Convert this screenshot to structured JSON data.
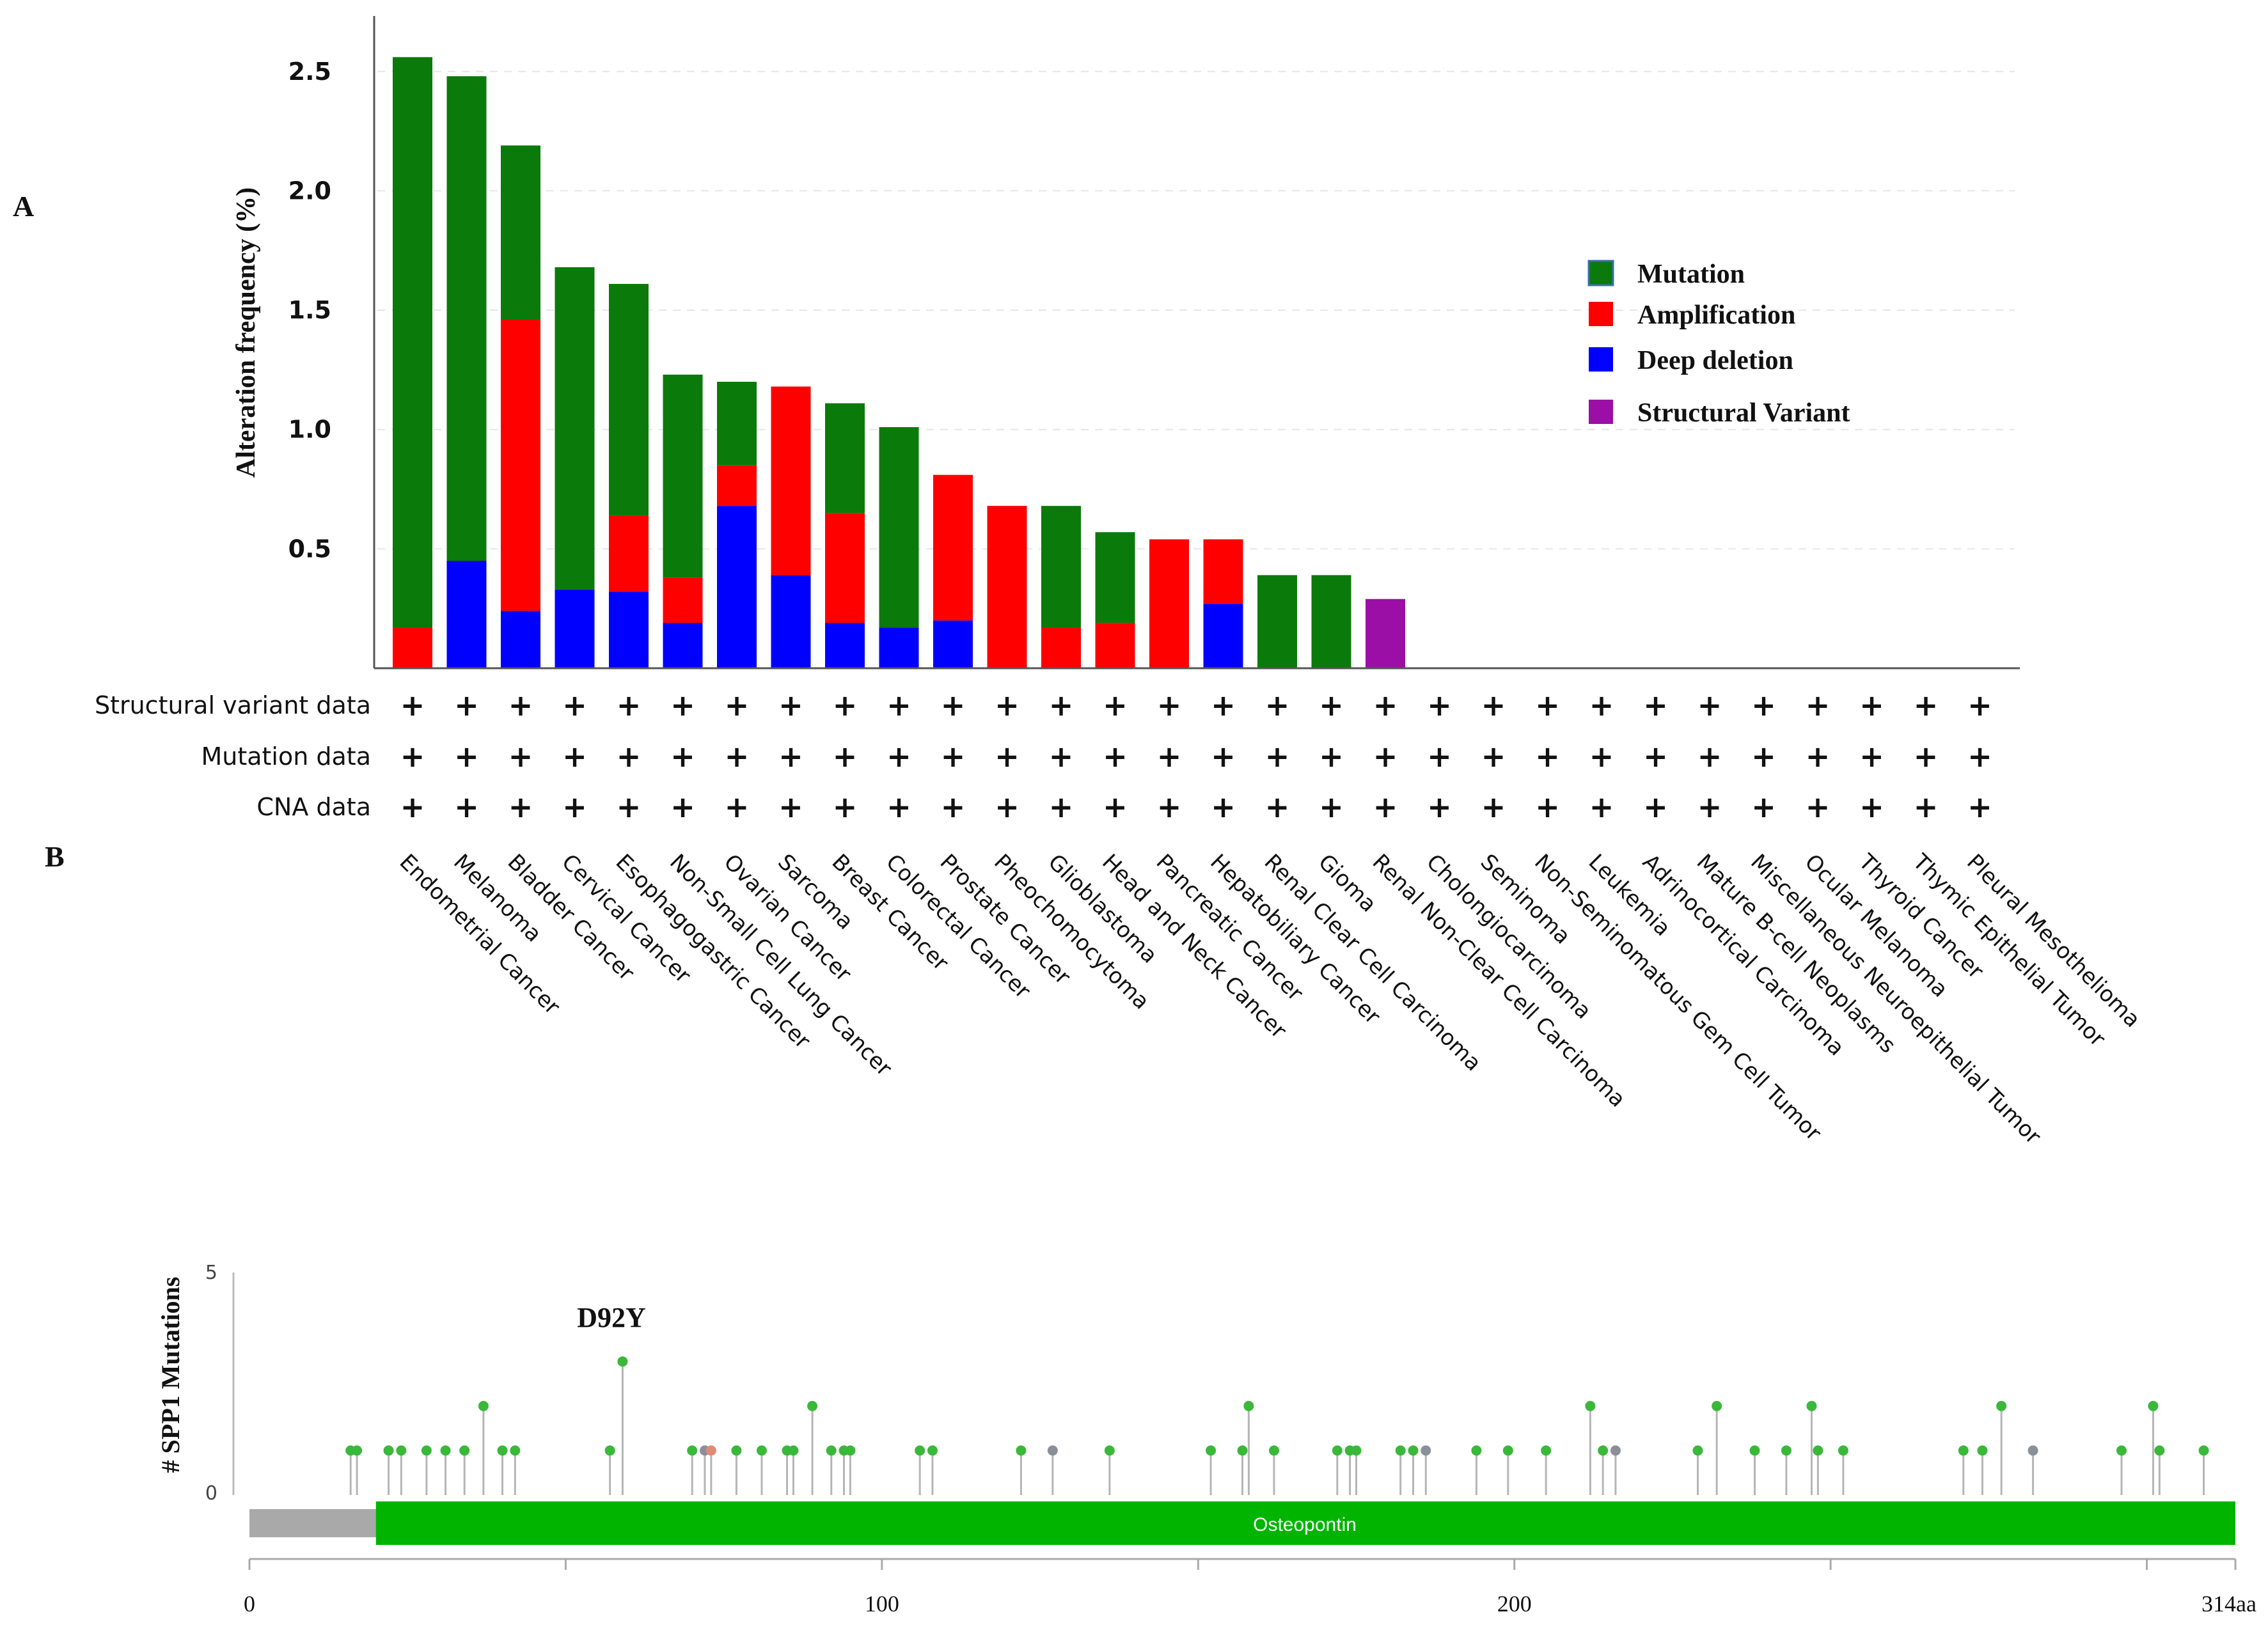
{
  "panel_labels": {
    "a": "A",
    "b": "B"
  },
  "colors": {
    "mutation": "#0a7a0a",
    "amplification": "#ff0000",
    "deep_deletion": "#0000ff",
    "structural_variant": "#9b0fa6",
    "lollipop_missense": "#3ab83a",
    "lollipop_truncating": "#8a8f99",
    "lollipop_other": "#e08b76",
    "domain": "#00b400",
    "protein_backbone": "#a9a9a9"
  },
  "legend": [
    {
      "key": "mutation",
      "label": "Mutation"
    },
    {
      "key": "amplification",
      "label": "Amplification"
    },
    {
      "key": "deep_deletion",
      "label": "Deep deletion"
    },
    {
      "key": "structural_variant",
      "label": "Structural Variant"
    }
  ],
  "row_labels": [
    "Structural variant data",
    "Mutation data",
    "CNA data"
  ],
  "row_marker": "+",
  "chart_data": [
    {
      "type": "bar",
      "stacked": true,
      "ylabel": "Alteration frequency (%)",
      "yticks": [
        "0.5",
        "1.0",
        "1.5",
        "2.0",
        "2.5"
      ],
      "ylim": [
        0,
        2.75
      ],
      "grid": "dashed horizontal",
      "legend_position": "right",
      "categories": [
        "Endometrial Cancer",
        "Melanoma",
        "Bladder Cancer",
        "Cervical Cancer",
        "Esophagogastric Cancer",
        "Non-Small Cell Lung Cancer",
        "Ovarian Cancer",
        "Sarcoma",
        "Breast Cancer",
        "Colorectal Cancer",
        "Prostate Cancer",
        "Pheochomocytoma",
        "Glioblastoma",
        "Head and Neck Cancer",
        "Pancreatic Cancer",
        "Hepatobiliary Cancer",
        "Renal Clear Cell Carcinoma",
        "Gioma",
        "Renal Non-Clear Cell Carcinoma",
        "Cholongiocarcinoma",
        "Seminoma",
        "Non-Seminomatous Gem Cell Tumor",
        "Leukemia",
        "Adrinocortical Carcinoma",
        "Mature B-cell Neoplasms",
        "Miscellaneous Neuroepithelial Tumor",
        "Ocular Melanoma",
        "Thyroid Cancer",
        "Thymic Epithelial Tumor",
        "Pleural Mesothelioma"
      ],
      "series": [
        {
          "name": "Deep deletion",
          "key": "deep_deletion",
          "values": [
            0,
            0.45,
            0.24,
            0.33,
            0.32,
            0.19,
            0.68,
            0.39,
            0.19,
            0.17,
            0.2,
            0,
            0,
            0,
            0,
            0.27,
            0,
            0,
            0,
            0,
            0,
            0,
            0,
            0,
            0,
            0,
            0,
            0,
            0,
            0
          ]
        },
        {
          "name": "Amplification",
          "key": "amplification",
          "values": [
            0.17,
            0,
            1.22,
            0,
            0.32,
            0.19,
            0.17,
            0.79,
            0.46,
            0,
            0.61,
            0.68,
            0.17,
            0.19,
            0.54,
            0.27,
            0,
            0,
            0,
            0,
            0,
            0,
            0,
            0,
            0,
            0,
            0,
            0,
            0,
            0
          ]
        },
        {
          "name": "Mutation",
          "key": "mutation",
          "values": [
            2.39,
            2.03,
            0.73,
            1.35,
            0.97,
            0.85,
            0.35,
            0,
            0.46,
            0.84,
            0,
            0,
            0.51,
            0.38,
            0,
            0,
            0.39,
            0.39,
            0,
            0,
            0,
            0,
            0,
            0,
            0,
            0,
            0,
            0,
            0,
            0
          ]
        },
        {
          "name": "Structural Variant",
          "key": "structural_variant",
          "values": [
            0,
            0,
            0,
            0,
            0,
            0,
            0,
            0,
            0,
            0,
            0,
            0,
            0,
            0,
            0,
            0,
            0,
            0,
            0.29,
            0,
            0,
            0,
            0,
            0,
            0,
            0,
            0,
            0,
            0,
            0
          ]
        }
      ]
    },
    {
      "type": "scatter",
      "subtype": "lollipop",
      "ylabel": "# SPP1 Mutations",
      "yticks": [
        "0",
        "5"
      ],
      "ylim": [
        0,
        5
      ],
      "xticks": [
        "0",
        "100",
        "200",
        "314aa"
      ],
      "xlim": [
        0,
        314
      ],
      "annotation": {
        "label": "D92Y",
        "position": 59
      },
      "domain": {
        "label": "Osteopontin",
        "start": 20,
        "end": 314
      },
      "mutations": [
        {
          "x": 16,
          "y": 1,
          "type": "missense"
        },
        {
          "x": 17,
          "y": 1,
          "type": "missense"
        },
        {
          "x": 22,
          "y": 1,
          "type": "missense"
        },
        {
          "x": 24,
          "y": 1,
          "type": "missense"
        },
        {
          "x": 28,
          "y": 1,
          "type": "missense"
        },
        {
          "x": 31,
          "y": 1,
          "type": "missense"
        },
        {
          "x": 34,
          "y": 1,
          "type": "missense"
        },
        {
          "x": 37,
          "y": 2,
          "type": "missense"
        },
        {
          "x": 40,
          "y": 1,
          "type": "missense"
        },
        {
          "x": 42,
          "y": 1,
          "type": "missense"
        },
        {
          "x": 57,
          "y": 1,
          "type": "missense"
        },
        {
          "x": 59,
          "y": 3,
          "type": "missense"
        },
        {
          "x": 70,
          "y": 1,
          "type": "missense"
        },
        {
          "x": 72,
          "y": 1,
          "type": "truncating"
        },
        {
          "x": 73,
          "y": 1,
          "type": "other"
        },
        {
          "x": 77,
          "y": 1,
          "type": "missense"
        },
        {
          "x": 81,
          "y": 1,
          "type": "missense"
        },
        {
          "x": 85,
          "y": 1,
          "type": "missense"
        },
        {
          "x": 86,
          "y": 1,
          "type": "missense"
        },
        {
          "x": 89,
          "y": 2,
          "type": "missense"
        },
        {
          "x": 92,
          "y": 1,
          "type": "missense"
        },
        {
          "x": 94,
          "y": 1,
          "type": "missense"
        },
        {
          "x": 95,
          "y": 1,
          "type": "missense"
        },
        {
          "x": 106,
          "y": 1,
          "type": "missense"
        },
        {
          "x": 108,
          "y": 1,
          "type": "missense"
        },
        {
          "x": 122,
          "y": 1,
          "type": "missense"
        },
        {
          "x": 127,
          "y": 1,
          "type": "truncating"
        },
        {
          "x": 136,
          "y": 1,
          "type": "missense"
        },
        {
          "x": 152,
          "y": 1,
          "type": "missense"
        },
        {
          "x": 157,
          "y": 1,
          "type": "missense"
        },
        {
          "x": 158,
          "y": 2,
          "type": "missense"
        },
        {
          "x": 162,
          "y": 1,
          "type": "missense"
        },
        {
          "x": 172,
          "y": 1,
          "type": "missense"
        },
        {
          "x": 174,
          "y": 1,
          "type": "missense"
        },
        {
          "x": 175,
          "y": 1,
          "type": "missense"
        },
        {
          "x": 182,
          "y": 1,
          "type": "missense"
        },
        {
          "x": 184,
          "y": 1,
          "type": "missense"
        },
        {
          "x": 186,
          "y": 1,
          "type": "truncating"
        },
        {
          "x": 194,
          "y": 1,
          "type": "missense"
        },
        {
          "x": 199,
          "y": 1,
          "type": "missense"
        },
        {
          "x": 205,
          "y": 1,
          "type": "missense"
        },
        {
          "x": 212,
          "y": 2,
          "type": "missense"
        },
        {
          "x": 214,
          "y": 1,
          "type": "missense"
        },
        {
          "x": 216,
          "y": 1,
          "type": "truncating"
        },
        {
          "x": 229,
          "y": 1,
          "type": "missense"
        },
        {
          "x": 232,
          "y": 2,
          "type": "missense"
        },
        {
          "x": 238,
          "y": 1,
          "type": "missense"
        },
        {
          "x": 243,
          "y": 1,
          "type": "missense"
        },
        {
          "x": 247,
          "y": 2,
          "type": "missense"
        },
        {
          "x": 248,
          "y": 1,
          "type": "missense"
        },
        {
          "x": 252,
          "y": 1,
          "type": "missense"
        },
        {
          "x": 271,
          "y": 1,
          "type": "missense"
        },
        {
          "x": 274,
          "y": 1,
          "type": "missense"
        },
        {
          "x": 277,
          "y": 2,
          "type": "missense"
        },
        {
          "x": 282,
          "y": 1,
          "type": "truncating"
        },
        {
          "x": 296,
          "y": 1,
          "type": "missense"
        },
        {
          "x": 301,
          "y": 2,
          "type": "missense"
        },
        {
          "x": 302,
          "y": 1,
          "type": "missense"
        },
        {
          "x": 309,
          "y": 1,
          "type": "missense"
        }
      ]
    }
  ]
}
